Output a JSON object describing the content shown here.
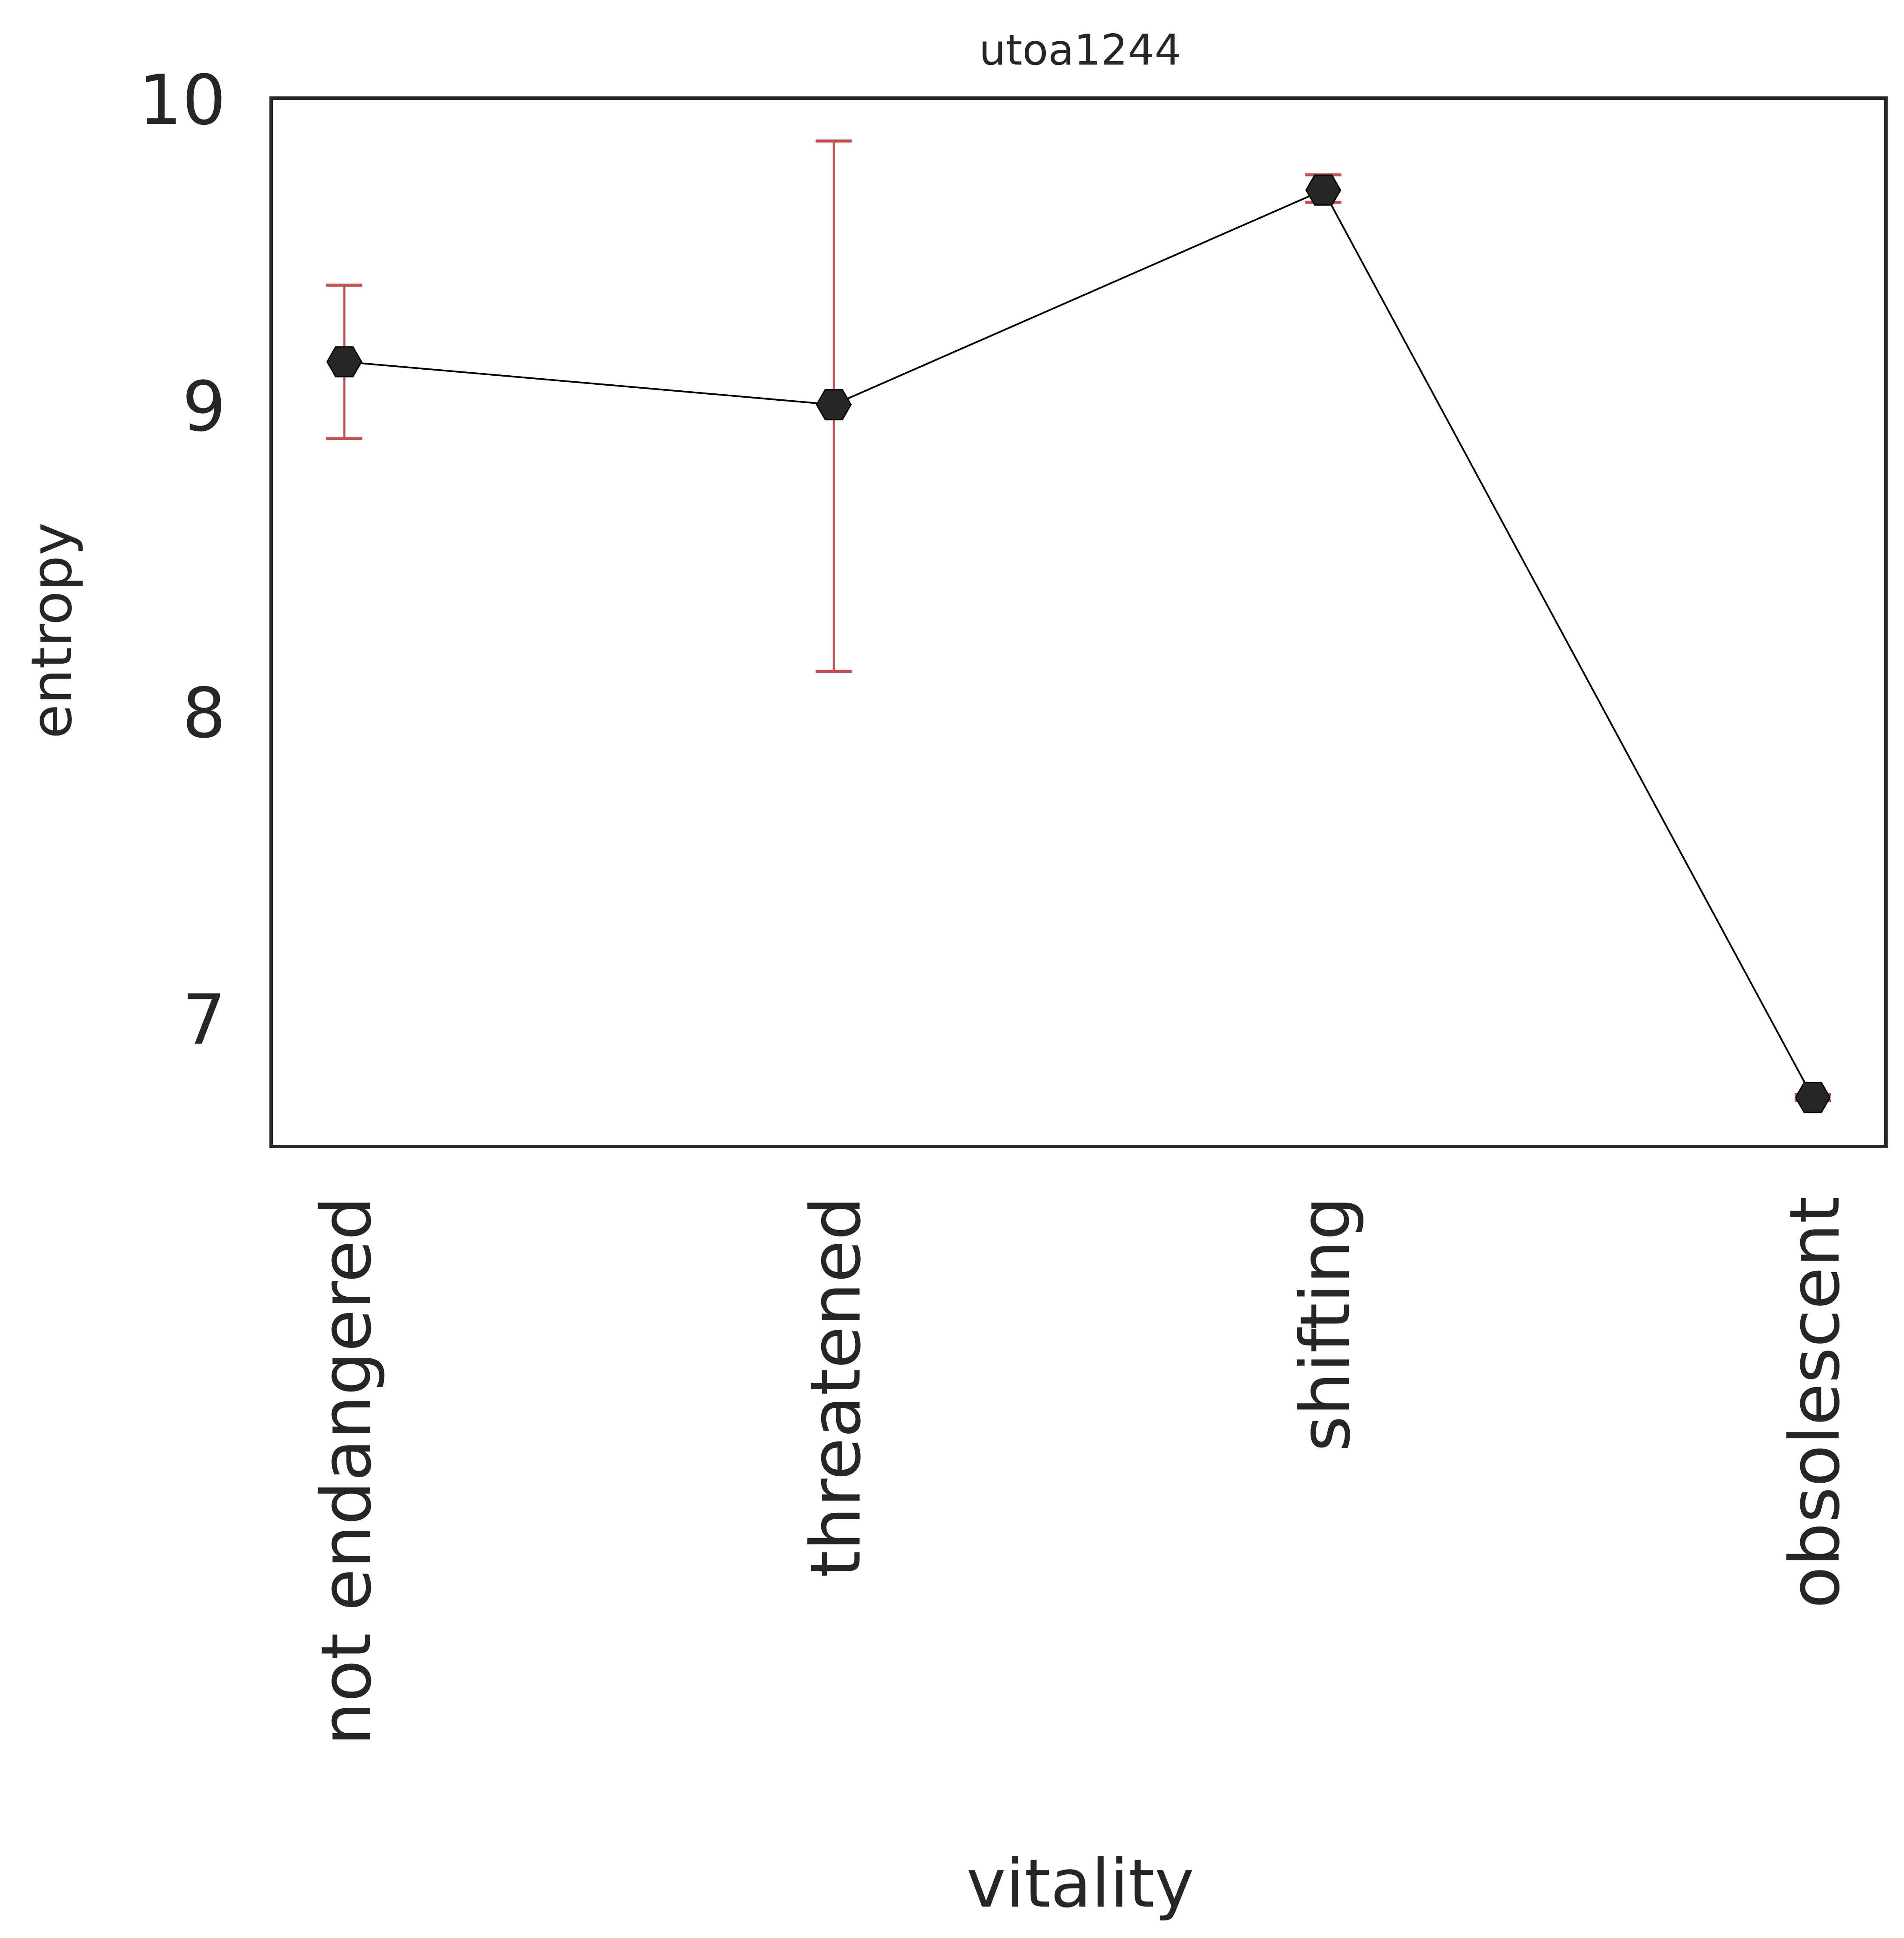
{
  "chart_data": {
    "type": "line",
    "title": "utoa1244",
    "xlabel": "vitality",
    "ylabel": "entropy",
    "categories": [
      "not endangered",
      "threatened",
      "shifting",
      "obsolescent"
    ],
    "values": [
      9.14,
      9.0,
      9.7,
      6.74
    ],
    "error_low": [
      8.89,
      8.13,
      9.66,
      6.73
    ],
    "error_high": [
      9.39,
      9.86,
      9.75,
      6.75
    ],
    "ylim": [
      6.58,
      10.0
    ],
    "yticks": [
      "7",
      "8",
      "9",
      "10"
    ],
    "grid": false,
    "line_color": "#000000",
    "marker_color": "#262626",
    "marker": "hexagon",
    "errorbar_color": "#c44e52",
    "frame_color": "#262626"
  }
}
